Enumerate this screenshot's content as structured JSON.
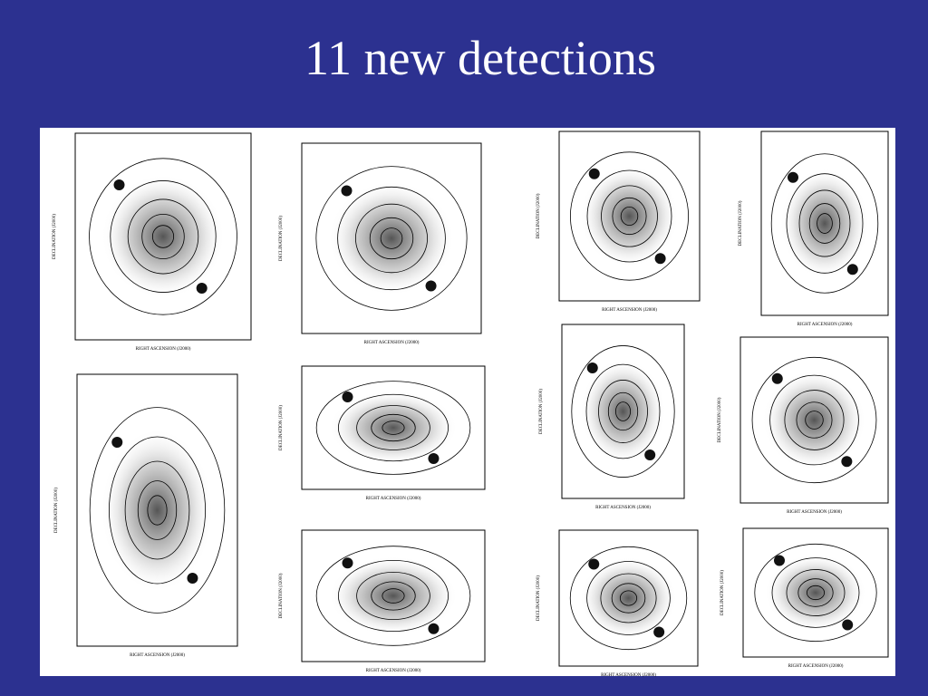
{
  "title": "11 new detections",
  "panels": [
    {
      "x_label": "RIGHT ASCENSION (J2000)",
      "y_label": "DECLINATION (J2000)"
    },
    {
      "x_label": "RIGHT ASCENSION (J2000)",
      "y_label": "DECLINATION (J2000)"
    },
    {
      "x_label": "RIGHT ASCENSION (J2000)",
      "y_label": "DECLINATION (J2000)"
    },
    {
      "x_label": "RIGHT ASCENSION (J2000)",
      "y_label": "DECLINATION (J2000)"
    },
    {
      "x_label": "RIGHT ASCENSION (J2000)",
      "y_label": "DECLINATION (J2000)"
    },
    {
      "x_label": "RIGHT ASCENSION (J2000)",
      "y_label": "DECLINATION (J2000)"
    },
    {
      "x_label": "RIGHT ASCENSION (J2000)",
      "y_label": "DECLINATION (J2000)"
    },
    {
      "x_label": "RIGHT ASCENSION (J2000)",
      "y_label": "DECLINATION (J2000)"
    },
    {
      "x_label": "RIGHT ASCENSION (J2000)",
      "y_label": "DECLINATION (J2000)"
    },
    {
      "x_label": "RIGHT ASCENSION (J2000)",
      "y_label": "DECLINATION (J2000)"
    },
    {
      "x_label": "RIGHT ASCENSION (J2000)",
      "y_label": "DECLINATION (J2000)"
    }
  ]
}
